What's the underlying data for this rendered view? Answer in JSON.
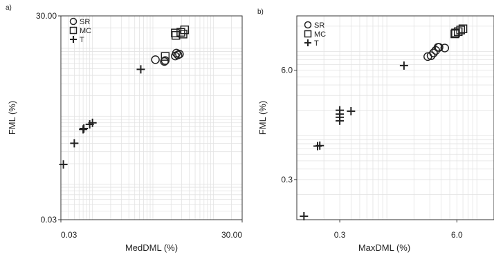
{
  "chart_data": [
    {
      "type": "scatter",
      "panel": "a)",
      "xlabel": "MedDML (%)",
      "ylabel": "FML (%)",
      "xscale": "log",
      "yscale": "log",
      "xlim": [
        0.03,
        30
      ],
      "ylim": [
        0.03,
        30
      ],
      "xticks": [
        "0.03",
        "30.00"
      ],
      "yticks": [
        "0.03",
        "30.00"
      ],
      "grid": true,
      "legend_position": "top-left",
      "series": [
        {
          "name": "SR",
          "marker": "circle",
          "points": [
            [
              1.1,
              6.8
            ],
            [
              1.55,
              6.4
            ],
            [
              1.6,
              6.6
            ],
            [
              2.35,
              7.7
            ],
            [
              2.45,
              8.5
            ],
            [
              2.6,
              8.0
            ],
            [
              2.75,
              8.2
            ]
          ]
        },
        {
          "name": "MC",
          "marker": "square",
          "points": [
            [
              1.6,
              7.6
            ],
            [
              2.35,
              16.8
            ],
            [
              2.4,
              15.5
            ],
            [
              2.9,
              17.2
            ],
            [
              3.15,
              16.2
            ],
            [
              3.35,
              18.7
            ]
          ]
        },
        {
          "name": "T",
          "marker": "plus",
          "points": [
            [
              0.033,
              0.195
            ],
            [
              0.05,
              0.4
            ],
            [
              0.07,
              0.64
            ],
            [
              0.072,
              0.66
            ],
            [
              0.09,
              0.76
            ],
            [
              0.1,
              0.8
            ],
            [
              0.63,
              4.9
            ]
          ]
        }
      ]
    },
    {
      "type": "scatter",
      "panel": "b)",
      "xlabel": "MaxDML (%)",
      "ylabel": "FML (%)",
      "xscale": "log",
      "yscale": "log",
      "xlim": [
        0.1,
        15.5
      ],
      "ylim": [
        0.1,
        26.5
      ],
      "xticks": [
        "0.3",
        "6.0"
      ],
      "yticks": [
        "0.3",
        "6.0"
      ],
      "grid": true,
      "legend_position": "top-left",
      "series": [
        {
          "name": "SR",
          "marker": "circle",
          "points": [
            [
              2.85,
              8.7
            ],
            [
              3.1,
              8.9
            ],
            [
              3.3,
              9.6
            ],
            [
              3.5,
              10.3
            ],
            [
              3.7,
              11.2
            ],
            [
              3.8,
              11.2
            ],
            [
              4.4,
              11.0
            ]
          ]
        },
        {
          "name": "MC",
          "marker": "square",
          "points": [
            [
              5.7,
              16.2
            ],
            [
              5.8,
              16.6
            ],
            [
              6.2,
              17.2
            ],
            [
              6.6,
              18.0
            ],
            [
              7.0,
              18.6
            ]
          ]
        },
        {
          "name": "T",
          "marker": "plus",
          "points": [
            [
              0.12,
              0.11
            ],
            [
              0.17,
              0.75
            ],
            [
              0.18,
              0.76
            ],
            [
              0.3,
              1.5
            ],
            [
              0.3,
              1.65
            ],
            [
              0.3,
              1.8
            ],
            [
              0.3,
              2.0
            ],
            [
              0.4,
              1.95
            ],
            [
              1.55,
              6.8
            ]
          ]
        }
      ]
    }
  ]
}
